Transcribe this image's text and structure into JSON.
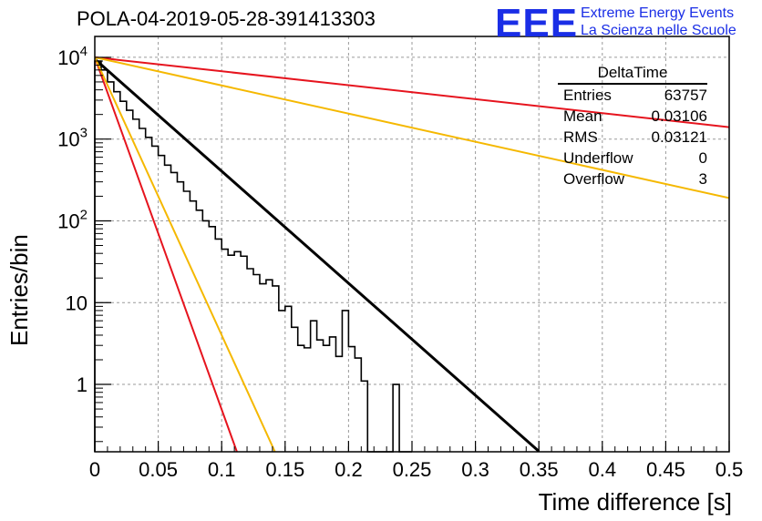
{
  "header": {
    "title": "POLA-04-2019-05-28-391413303",
    "logo_text": "EEE",
    "logo_line1": "Extreme Energy Events",
    "logo_line2": "La Scienza nelle Scuole"
  },
  "stats": {
    "title": "DeltaTime",
    "rows": [
      {
        "label": "Entries",
        "value": "63757"
      },
      {
        "label": "Mean",
        "value": "0.03106"
      },
      {
        "label": "RMS",
        "value": "0.03121"
      },
      {
        "label": "Underflow",
        "value": "0"
      },
      {
        "label": "Overflow",
        "value": "3"
      }
    ]
  },
  "chart_data": {
    "type": "line",
    "title": "POLA-04-2019-05-28-391413303",
    "xlabel": "Time difference [s]",
    "ylabel": "Entries/bin",
    "xlim": [
      0,
      0.5
    ],
    "ylim": [
      0.15,
      18000
    ],
    "log_y": true,
    "grid": true,
    "legend": "top-right stats box",
    "x_ticks": [
      "0",
      "0.05",
      "0.1",
      "0.15",
      "0.2",
      "0.25",
      "0.3",
      "0.35",
      "0.4",
      "0.45",
      "0.5"
    ],
    "y_ticks": [
      {
        "value": 1,
        "label": "1"
      },
      {
        "value": 10,
        "label": "10"
      },
      {
        "value": 100,
        "label": "10^2"
      },
      {
        "value": 1000,
        "label": "10^3"
      },
      {
        "value": 10000,
        "label": "10^4"
      }
    ],
    "histogram": {
      "bin_width": 0.005,
      "color": "#000000",
      "values": [
        9000,
        7000,
        5000,
        3800,
        2900,
        2250,
        1750,
        1350,
        1050,
        820,
        630,
        480,
        390,
        300,
        230,
        175,
        135,
        100,
        85,
        60,
        45,
        38,
        42,
        37,
        26,
        22,
        17,
        19,
        16,
        8,
        9,
        5,
        3,
        2.8,
        6,
        3.5,
        3,
        3.8,
        2.2,
        8,
        2.9,
        2.1,
        1.1,
        0.1,
        0.1,
        0.1,
        0.1,
        1,
        0.1,
        0.1
      ]
    },
    "series": [
      {
        "name": "",
        "color": "#000000",
        "x": [
          0,
          0.35
        ],
        "y": [
          9500,
          0.152
        ],
        "width": 3
      },
      {
        "name": "",
        "color": "#e6141e",
        "x": [
          0,
          0.5
        ],
        "y": [
          10000,
          1400
        ],
        "width": 2
      },
      {
        "name": "",
        "color": "#f5b800",
        "x": [
          0,
          0.5
        ],
        "y": [
          10000,
          190
        ],
        "width": 2
      },
      {
        "name": "",
        "color": "#e6141e",
        "x": [
          0,
          0.112
        ],
        "y": [
          10000,
          0.15
        ],
        "width": 2
      },
      {
        "name": "",
        "color": "#f5b800",
        "x": [
          0,
          0.142
        ],
        "y": [
          10000,
          0.15
        ],
        "width": 2
      }
    ]
  }
}
